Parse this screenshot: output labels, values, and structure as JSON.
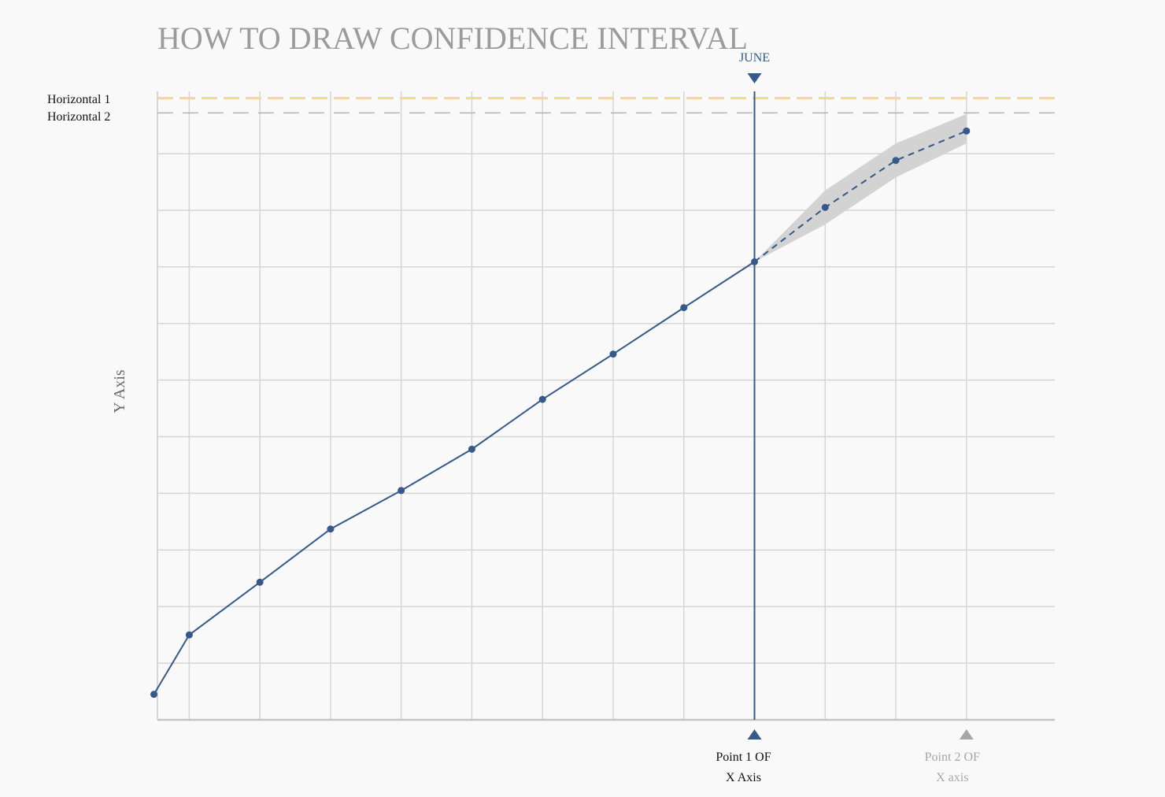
{
  "colors": {
    "background": "#f9f9f9",
    "grid": "#d6d6d6",
    "series": "#34598a",
    "band": "#d3d3d3",
    "horizontal1": "#f5d78e",
    "horizontal2": "#b3b3b3",
    "point2": "#a6a6a6",
    "title": "#9b9b9b"
  },
  "chart_data": {
    "type": "line",
    "title": "HOW TO DRAW CONFIDENCE INTERVAL",
    "ylabel": "Y Axis",
    "xlabel": "",
    "grid": true,
    "xlim": [
      -0.45,
      12.25
    ],
    "ylim": [
      0,
      11.1
    ],
    "x_gridlines": [
      0,
      1,
      2,
      3,
      4,
      5,
      6,
      7,
      8,
      9,
      10,
      11
    ],
    "y_gridlines": [
      1,
      2,
      3,
      4,
      5,
      6,
      7,
      8,
      9,
      10
    ],
    "series": [
      {
        "style": "solid",
        "x": [
          -0.5,
          0,
          1,
          2,
          3,
          4,
          5,
          6,
          7,
          8
        ],
        "y": [
          0.45,
          1.5,
          2.43,
          3.37,
          4.05,
          4.78,
          5.66,
          6.46,
          7.28,
          8.09
        ]
      },
      {
        "style": "dashed",
        "x": [
          8,
          9,
          10,
          11
        ],
        "y": [
          8.09,
          9.05,
          9.88,
          10.4
        ]
      }
    ],
    "confidence_band": {
      "x": [
        8,
        9,
        10,
        11
      ],
      "lower": [
        8.09,
        8.75,
        9.58,
        10.18
      ],
      "upper": [
        8.09,
        9.35,
        10.18,
        10.7
      ]
    },
    "horizontal_lines": [
      {
        "label": "Horizontal 1",
        "y": 10.98
      },
      {
        "label": "Horizontal 2",
        "y": 10.72
      }
    ],
    "vertical_line": {
      "x": 8
    },
    "annotations": {
      "top_marker": {
        "text": "JUNE",
        "x": 8
      },
      "point1": {
        "x": 8,
        "line1": "Point 1 OF",
        "line2": "X Axis"
      },
      "point2": {
        "x": 11,
        "line1": "Point 2 OF",
        "line2": "X axis"
      }
    }
  }
}
